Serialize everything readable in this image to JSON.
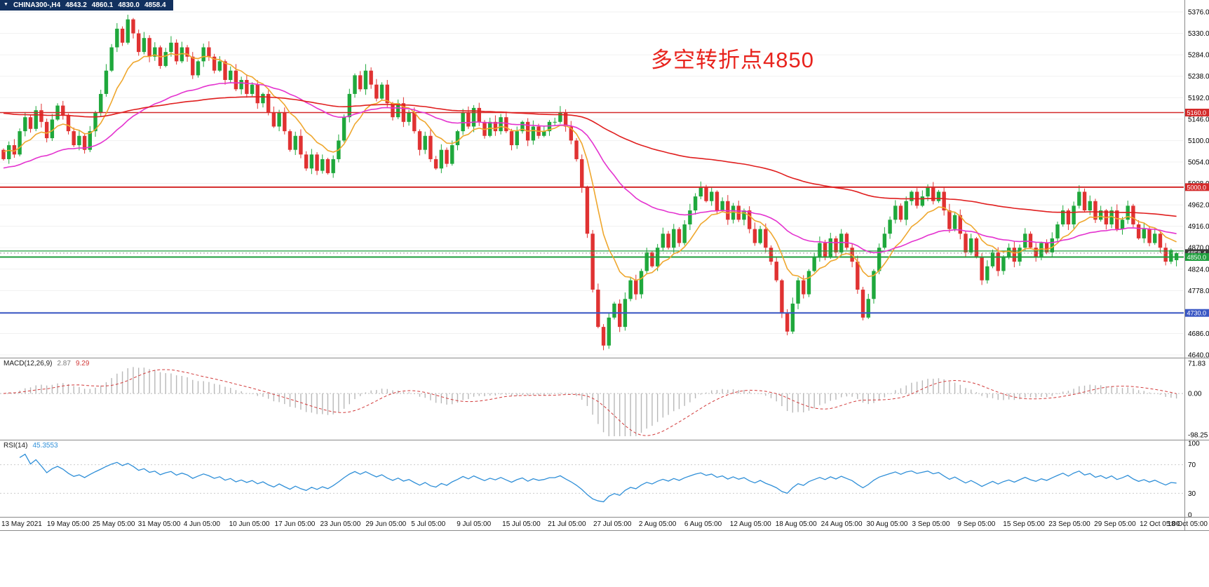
{
  "header": {
    "collapse_icon": "▼",
    "symbol": "CHINA300-,H4",
    "open": "4843.2",
    "high": "4860.1",
    "low": "4830.0",
    "close": "4858.4"
  },
  "annotation": {
    "text": "多空转折点4850",
    "color": "#e8231d"
  },
  "chart_data": {
    "type": "candlestick",
    "title": "CHINA300-,H4",
    "background": "#ffffff",
    "grid_color": "#f1f1f1",
    "separator_color": "#8a8a8a",
    "price_axis": {
      "min": 4640,
      "max": 5376,
      "labels": [
        "5376.0",
        "5330.0",
        "5284.0",
        "5238.0",
        "5192.0",
        "5146.0",
        "5100.0",
        "5054.0",
        "5008.0",
        "4962.0",
        "4916.0",
        "4870.0",
        "4824.0",
        "4778.0",
        "4732.0",
        "4686.0",
        "4640.0"
      ]
    },
    "candles": {
      "up_color": "#1fa83c",
      "down_color": "#e03232",
      "closes": [
        5060,
        5090,
        5070,
        5120,
        5150,
        5125,
        5165,
        5140,
        5105,
        5145,
        5175,
        5155,
        5120,
        5090,
        5110,
        5080,
        5120,
        5160,
        5200,
        5250,
        5300,
        5340,
        5310,
        5360,
        5330,
        5290,
        5320,
        5280,
        5300,
        5260,
        5290,
        5310,
        5270,
        5300,
        5280,
        5240,
        5270,
        5300,
        5280,
        5250,
        5270,
        5230,
        5250,
        5210,
        5230,
        5200,
        5220,
        5180,
        5200,
        5160,
        5130,
        5160,
        5120,
        5080,
        5110,
        5070,
        5040,
        5070,
        5035,
        5060,
        5030,
        5060,
        5100,
        5150,
        5200,
        5240,
        5210,
        5250,
        5220,
        5190,
        5220,
        5180,
        5150,
        5180,
        5140,
        5160,
        5120,
        5080,
        5110,
        5060,
        5040,
        5080,
        5050,
        5090,
        5120,
        5160,
        5130,
        5170,
        5140,
        5110,
        5140,
        5120,
        5150,
        5120,
        5090,
        5120,
        5140,
        5100,
        5130,
        5110,
        5120,
        5140,
        5140,
        5160,
        5130,
        5100,
        5060,
        5000,
        4900,
        4780,
        4700,
        4660,
        4720,
        4750,
        4700,
        4760,
        4800,
        4770,
        4820,
        4860,
        4830,
        4870,
        4900,
        4870,
        4910,
        4880,
        4920,
        4950,
        4980,
        5000,
        4970,
        4990,
        4950,
        4970,
        4930,
        4960,
        4930,
        4950,
        4910,
        4880,
        4910,
        4870,
        4840,
        4800,
        4730,
        4690,
        4750,
        4800,
        4770,
        4820,
        4850,
        4880,
        4850,
        4890,
        4860,
        4900,
        4870,
        4840,
        4780,
        4720,
        4760,
        4820,
        4870,
        4900,
        4930,
        4960,
        4930,
        4970,
        4990,
        4960,
        4980,
        5000,
        4970,
        4990,
        4950,
        4910,
        4940,
        4900,
        4860,
        4890,
        4850,
        4800,
        4830,
        4860,
        4820,
        4850,
        4870,
        4840,
        4870,
        4900,
        4870,
        4850,
        4880,
        4860,
        4890,
        4920,
        4950,
        4920,
        4960,
        4990,
        4950,
        4970,
        4930,
        4950,
        4920,
        4950,
        4910,
        4930,
        4960,
        4920,
        4890,
        4910,
        4880,
        4900,
        4870,
        4840,
        4865,
        4858.4
      ],
      "last": {
        "open": 4843.2,
        "high": 4860.1,
        "low": 4830.0,
        "close": 4858.4
      }
    },
    "moving_averages": [
      {
        "name": "fast-ma",
        "period": 10,
        "color": "#efa72e",
        "seed": 5080
      },
      {
        "name": "medium-ma",
        "period": 40,
        "color": "#e433cf",
        "seed": 5040
      },
      {
        "name": "slow-ma",
        "period": 130,
        "color": "#e01f1f",
        "seed": 5160
      }
    ],
    "hlines": [
      {
        "value": 5160,
        "label": "5160.0",
        "color": "#d42a2a",
        "width": 1.5
      },
      {
        "value": 5000,
        "label": "5000.0",
        "color": "#d42a2a",
        "width": 2
      },
      {
        "value": 4863,
        "label": null,
        "color": "#1f9e3d",
        "width": 1.3
      },
      {
        "value": 4850,
        "label": "4850.0",
        "color": "#1f9e3d",
        "width": 2
      },
      {
        "value": 4730,
        "label": "4730.0",
        "color": "#3a57c4",
        "width": 2
      }
    ],
    "price_marker": {
      "value": 4858.4,
      "label": "4858.4",
      "bg": "#3a3a3a"
    },
    "macd": {
      "label": "MACD(12,26,9)",
      "main_value": "2.87",
      "signal_value": "9.29",
      "fast": 12,
      "slow": 26,
      "signal": 9,
      "axis": [
        "71.83",
        "0.00",
        "-98.25"
      ],
      "axis_values": [
        71.83,
        0,
        -98.25
      ],
      "hist_color": "#b8b8b8",
      "signal_color": "#d23b3b"
    },
    "rsi": {
      "label": "RSI(14)",
      "value": "45.3553",
      "period": 14,
      "axis": [
        "100",
        "70",
        "30",
        "0"
      ],
      "levels": [
        70,
        30
      ],
      "color": "#2f8fd8"
    },
    "time_axis": {
      "labels": [
        "13 May 2021",
        "19 May 05:00",
        "25 May 05:00",
        "31 May 05:00",
        "4 Jun 05:00",
        "10 Jun 05:00",
        "17 Jun 05:00",
        "23 Jun 05:00",
        "29 Jun 05:00",
        "5 Jul 05:00",
        "9 Jul 05:00",
        "15 Jul 05:00",
        "21 Jul 05:00",
        "27 Jul 05:00",
        "2 Aug 05:00",
        "6 Aug 05:00",
        "12 Aug 05:00",
        "18 Aug 05:00",
        "24 Aug 05:00",
        "30 Aug 05:00",
        "3 Sep 05:00",
        "9 Sep 05:00",
        "15 Sep 05:00",
        "23 Sep 05:00",
        "29 Sep 05:00",
        "12 Oct 05:00",
        "18 Oct 05:00"
      ]
    }
  }
}
